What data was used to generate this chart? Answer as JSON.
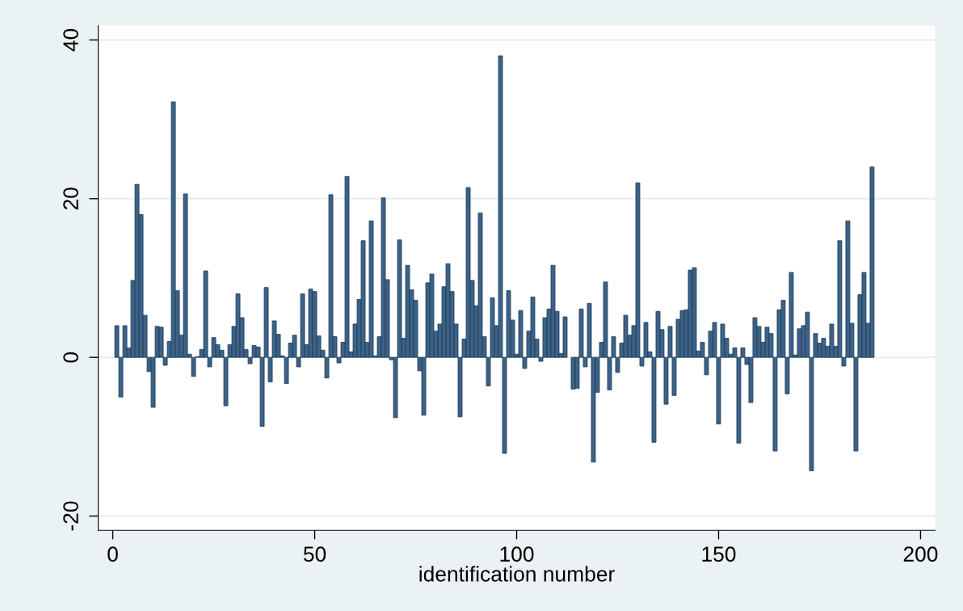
{
  "chart_data": {
    "type": "bar",
    "xlabel": "identification number",
    "x": [
      1,
      2,
      3,
      4,
      5,
      6,
      7,
      8,
      9,
      10,
      11,
      12,
      13,
      14,
      15,
      16,
      17,
      18,
      19,
      20,
      21,
      22,
      23,
      24,
      25,
      26,
      27,
      28,
      29,
      30,
      31,
      32,
      33,
      34,
      35,
      36,
      37,
      38,
      39,
      40,
      41,
      42,
      43,
      44,
      45,
      46,
      47,
      48,
      49,
      50,
      51,
      52,
      53,
      54,
      55,
      56,
      57,
      58,
      59,
      60,
      61,
      62,
      63,
      64,
      65,
      66,
      67,
      68,
      69,
      70,
      71,
      72,
      73,
      74,
      75,
      76,
      77,
      78,
      79,
      80,
      81,
      82,
      83,
      84,
      85,
      86,
      87,
      88,
      89,
      90,
      91,
      92,
      93,
      94,
      95,
      96,
      97,
      98,
      99,
      100,
      101,
      102,
      103,
      104,
      105,
      106,
      107,
      108,
      109,
      110,
      111,
      112,
      113,
      114,
      115,
      116,
      117,
      118,
      119,
      120,
      121,
      122,
      123,
      124,
      125,
      126,
      127,
      128,
      129,
      130,
      131,
      132,
      133,
      134,
      135,
      136,
      137,
      138,
      139,
      140,
      141,
      142,
      143,
      144,
      145,
      146,
      147,
      148,
      149,
      150,
      151,
      152,
      153,
      154,
      155,
      156,
      157,
      158,
      159,
      160,
      161,
      162,
      163,
      164,
      165,
      166,
      167,
      168,
      169,
      170,
      171,
      172,
      173,
      174,
      175,
      176,
      177,
      178,
      179,
      180,
      181,
      182,
      183,
      184,
      185,
      186,
      187,
      188
    ],
    "values": [
      4,
      -5,
      4,
      1.2,
      9.7,
      21.8,
      18,
      5.3,
      -1.8,
      -6.3,
      3.9,
      3.8,
      -1,
      2,
      32.2,
      8.4,
      2.8,
      20.6,
      0.4,
      -2.4,
      0.1,
      1,
      10.9,
      -1.2,
      2.5,
      1.6,
      0.9,
      -6.1,
      1.6,
      3.9,
      8,
      5,
      1,
      -0.8,
      1.5,
      1.3,
      -8.7,
      8.8,
      -3.1,
      4.6,
      2.9,
      0.2,
      -3.3,
      1.8,
      2.8,
      -1.2,
      8,
      1.6,
      8.6,
      8.3,
      2.7,
      0.9,
      -2.6,
      20.5,
      2.6,
      -0.7,
      1.9,
      22.8,
      0.7,
      4.2,
      7.3,
      14.7,
      1.9,
      17.2,
      0.2,
      2.6,
      20.1,
      9.8,
      -0.3,
      -7.6,
      14.8,
      2.4,
      11.6,
      8.5,
      7.2,
      -1.7,
      -7.3,
      9.4,
      10.5,
      3.3,
      4.2,
      8.9,
      11.8,
      8.3,
      4.2,
      -7.5,
      2.3,
      21.4,
      9.7,
      6.5,
      18.2,
      2.6,
      -3.6,
      7.5,
      4,
      38,
      -12.1,
      8.4,
      4.7,
      0.4,
      5.9,
      -1.4,
      3.3,
      7.6,
      2.3,
      -0.5,
      5,
      6.1,
      11.6,
      5.8,
      0.5,
      5.1,
      null,
      -4,
      -3.9,
      6.1,
      -1.2,
      6.8,
      -13.2,
      -4.4,
      1.9,
      9.5,
      -4.1,
      2.6,
      -1.9,
      1.8,
      5.3,
      2.8,
      4,
      22,
      -1.1,
      4.4,
      0.7,
      -10.7,
      5.8,
      3.5,
      -5.9,
      3.9,
      -4.8,
      4.8,
      5.9,
      6,
      11,
      11.3,
      0.8,
      1.9,
      -2.2,
      3.3,
      4.4,
      -8.4,
      4.2,
      2.4,
      0.4,
      1.2,
      -10.8,
      1.2,
      -0.9,
      -5.7,
      5,
      3.9,
      1.9,
      3.8,
      3,
      -11.8,
      6,
      7.2,
      -4.6,
      10.7,
      0.3,
      3.6,
      4,
      5.7,
      -14.3,
      3,
      1.8,
      2.4,
      1.4,
      4.2,
      1.4,
      14.7,
      -1.1,
      17.2,
      4.3,
      -11.8,
      7.9,
      10.7,
      4.3,
      24
    ],
    "color": "#3d6285",
    "xlim": [
      -3.6,
      203.6
    ],
    "xticks": [
      0,
      50,
      100,
      150,
      200
    ],
    "ylim": [
      -21.8,
      41.8
    ],
    "yticks": [
      -20,
      0,
      20,
      40
    ],
    "grid": "y"
  }
}
